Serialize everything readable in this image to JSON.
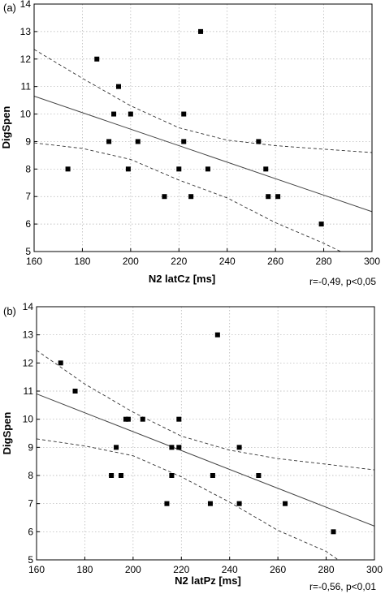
{
  "chart_data": [
    {
      "type": "scatter",
      "panel_label": "(a)",
      "xlabel": "N2 latCz [ms]",
      "ylabel": "DigSpen",
      "annotation": "r=-0,49, p<0,05",
      "xlim": [
        160,
        300
      ],
      "ylim": [
        5,
        14
      ],
      "xticks": [
        160,
        180,
        200,
        220,
        240,
        260,
        280,
        300
      ],
      "yticks": [
        5,
        6,
        7,
        8,
        9,
        10,
        11,
        12,
        13,
        14
      ],
      "grid": true,
      "points": [
        {
          "x": 174,
          "y": 8
        },
        {
          "x": 186,
          "y": 12
        },
        {
          "x": 191,
          "y": 9
        },
        {
          "x": 193,
          "y": 10
        },
        {
          "x": 195,
          "y": 11
        },
        {
          "x": 199,
          "y": 8
        },
        {
          "x": 200,
          "y": 10
        },
        {
          "x": 203,
          "y": 9
        },
        {
          "x": 214,
          "y": 7
        },
        {
          "x": 220,
          "y": 8
        },
        {
          "x": 222,
          "y": 10
        },
        {
          "x": 222,
          "y": 9
        },
        {
          "x": 225,
          "y": 7
        },
        {
          "x": 229,
          "y": 13
        },
        {
          "x": 232,
          "y": 8
        },
        {
          "x": 253,
          "y": 9
        },
        {
          "x": 256,
          "y": 8
        },
        {
          "x": 257,
          "y": 7
        },
        {
          "x": 261,
          "y": 7
        },
        {
          "x": 279,
          "y": 6
        }
      ],
      "regression": {
        "x": [
          160,
          300
        ],
        "y": [
          10.65,
          6.45
        ]
      },
      "ci_upper": {
        "x": [
          160,
          180,
          200,
          220,
          240,
          260,
          280,
          300
        ],
        "y": [
          12.35,
          11.3,
          10.3,
          9.5,
          9.05,
          8.85,
          8.72,
          8.6
        ]
      },
      "ci_lower": {
        "x": [
          160,
          180,
          200,
          220,
          240,
          260,
          280,
          287
        ],
        "y": [
          8.95,
          8.75,
          8.35,
          7.6,
          6.95,
          6.05,
          5.3,
          5.0
        ]
      }
    },
    {
      "type": "scatter",
      "panel_label": "(b)",
      "xlabel": "N2 latPz [ms]",
      "ylabel": "DigSpen",
      "annotation": "r=-0,56, p<0,01",
      "xlim": [
        160,
        300
      ],
      "ylim": [
        5,
        14
      ],
      "xticks": [
        160,
        180,
        200,
        220,
        240,
        260,
        280,
        300
      ],
      "yticks": [
        5,
        6,
        7,
        8,
        9,
        10,
        11,
        12,
        13,
        14
      ],
      "grid": true,
      "points": [
        {
          "x": 170,
          "y": 12
        },
        {
          "x": 176,
          "y": 11
        },
        {
          "x": 191,
          "y": 8
        },
        {
          "x": 193,
          "y": 9
        },
        {
          "x": 195,
          "y": 8
        },
        {
          "x": 197,
          "y": 10
        },
        {
          "x": 198,
          "y": 10
        },
        {
          "x": 204,
          "y": 10
        },
        {
          "x": 214,
          "y": 7
        },
        {
          "x": 216,
          "y": 9
        },
        {
          "x": 216,
          "y": 8
        },
        {
          "x": 219,
          "y": 10
        },
        {
          "x": 219,
          "y": 9
        },
        {
          "x": 232,
          "y": 7
        },
        {
          "x": 233,
          "y": 8
        },
        {
          "x": 235,
          "y": 13
        },
        {
          "x": 244,
          "y": 9
        },
        {
          "x": 244,
          "y": 7
        },
        {
          "x": 252,
          "y": 8
        },
        {
          "x": 263,
          "y": 7
        },
        {
          "x": 283,
          "y": 6
        }
      ],
      "regression": {
        "x": [
          160,
          300
        ],
        "y": [
          10.9,
          6.2
        ]
      },
      "ci_upper": {
        "x": [
          160,
          180,
          200,
          220,
          240,
          260,
          280,
          300
        ],
        "y": [
          12.45,
          11.25,
          10.25,
          9.4,
          8.9,
          8.6,
          8.4,
          8.2
        ]
      },
      "ci_lower": {
        "x": [
          160,
          180,
          200,
          220,
          240,
          260,
          280,
          285
        ],
        "y": [
          9.3,
          9.05,
          8.7,
          7.95,
          7.05,
          6.05,
          5.3,
          5.0
        ]
      }
    }
  ]
}
